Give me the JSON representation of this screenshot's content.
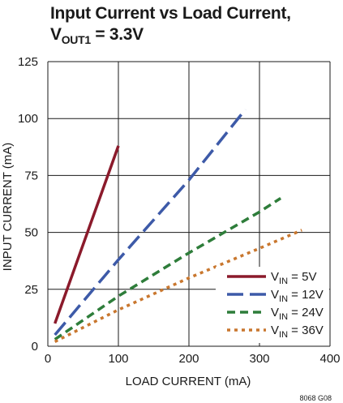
{
  "title": {
    "line1": "Input Current vs Load Current,",
    "line2_main": "V",
    "line2_sub": "OUT1",
    "line2_rest": " = 3.3V"
  },
  "footnote": "8068 G08",
  "colors": {
    "vin_5v": "#8b1a2b",
    "vin_12v": "#3d5aa8",
    "vin_24v": "#2e7d3a",
    "vin_36v": "#c9772e",
    "grid": "#1a1a1a"
  },
  "chart_data": {
    "type": "line",
    "xlabel": "LOAD CURRENT (mA)",
    "ylabel": "INPUT CURRENT (mA)",
    "xlim": [
      0,
      400
    ],
    "ylim": [
      0,
      125
    ],
    "xticks": [
      0,
      100,
      200,
      300,
      400
    ],
    "yticks": [
      0,
      25,
      50,
      75,
      100,
      125
    ],
    "grid": true,
    "legend_position": "bottom-right",
    "series": [
      {
        "name_main": "V",
        "name_sub": "IN",
        "name_rest": " = 5V",
        "style": "solid",
        "color_key": "vin_5v",
        "x": [
          10,
          100
        ],
        "y": [
          10,
          88
        ]
      },
      {
        "name_main": "V",
        "name_sub": "IN",
        "name_rest": " = 12V",
        "style": "long-dash",
        "color_key": "vin_12v",
        "x": [
          10,
          100,
          200,
          280
        ],
        "y": [
          5,
          38,
          73,
          104
        ]
      },
      {
        "name_main": "V",
        "name_sub": "IN",
        "name_rest": " = 24V",
        "style": "dash",
        "color_key": "vin_24v",
        "x": [
          10,
          100,
          200,
          300,
          330
        ],
        "y": [
          3,
          22,
          41,
          59,
          65
        ]
      },
      {
        "name_main": "V",
        "name_sub": "IN",
        "name_rest": " = 36V",
        "style": "dot",
        "color_key": "vin_36v",
        "x": [
          10,
          100,
          200,
          300,
          360
        ],
        "y": [
          2,
          16,
          30,
          43,
          51
        ]
      }
    ]
  }
}
